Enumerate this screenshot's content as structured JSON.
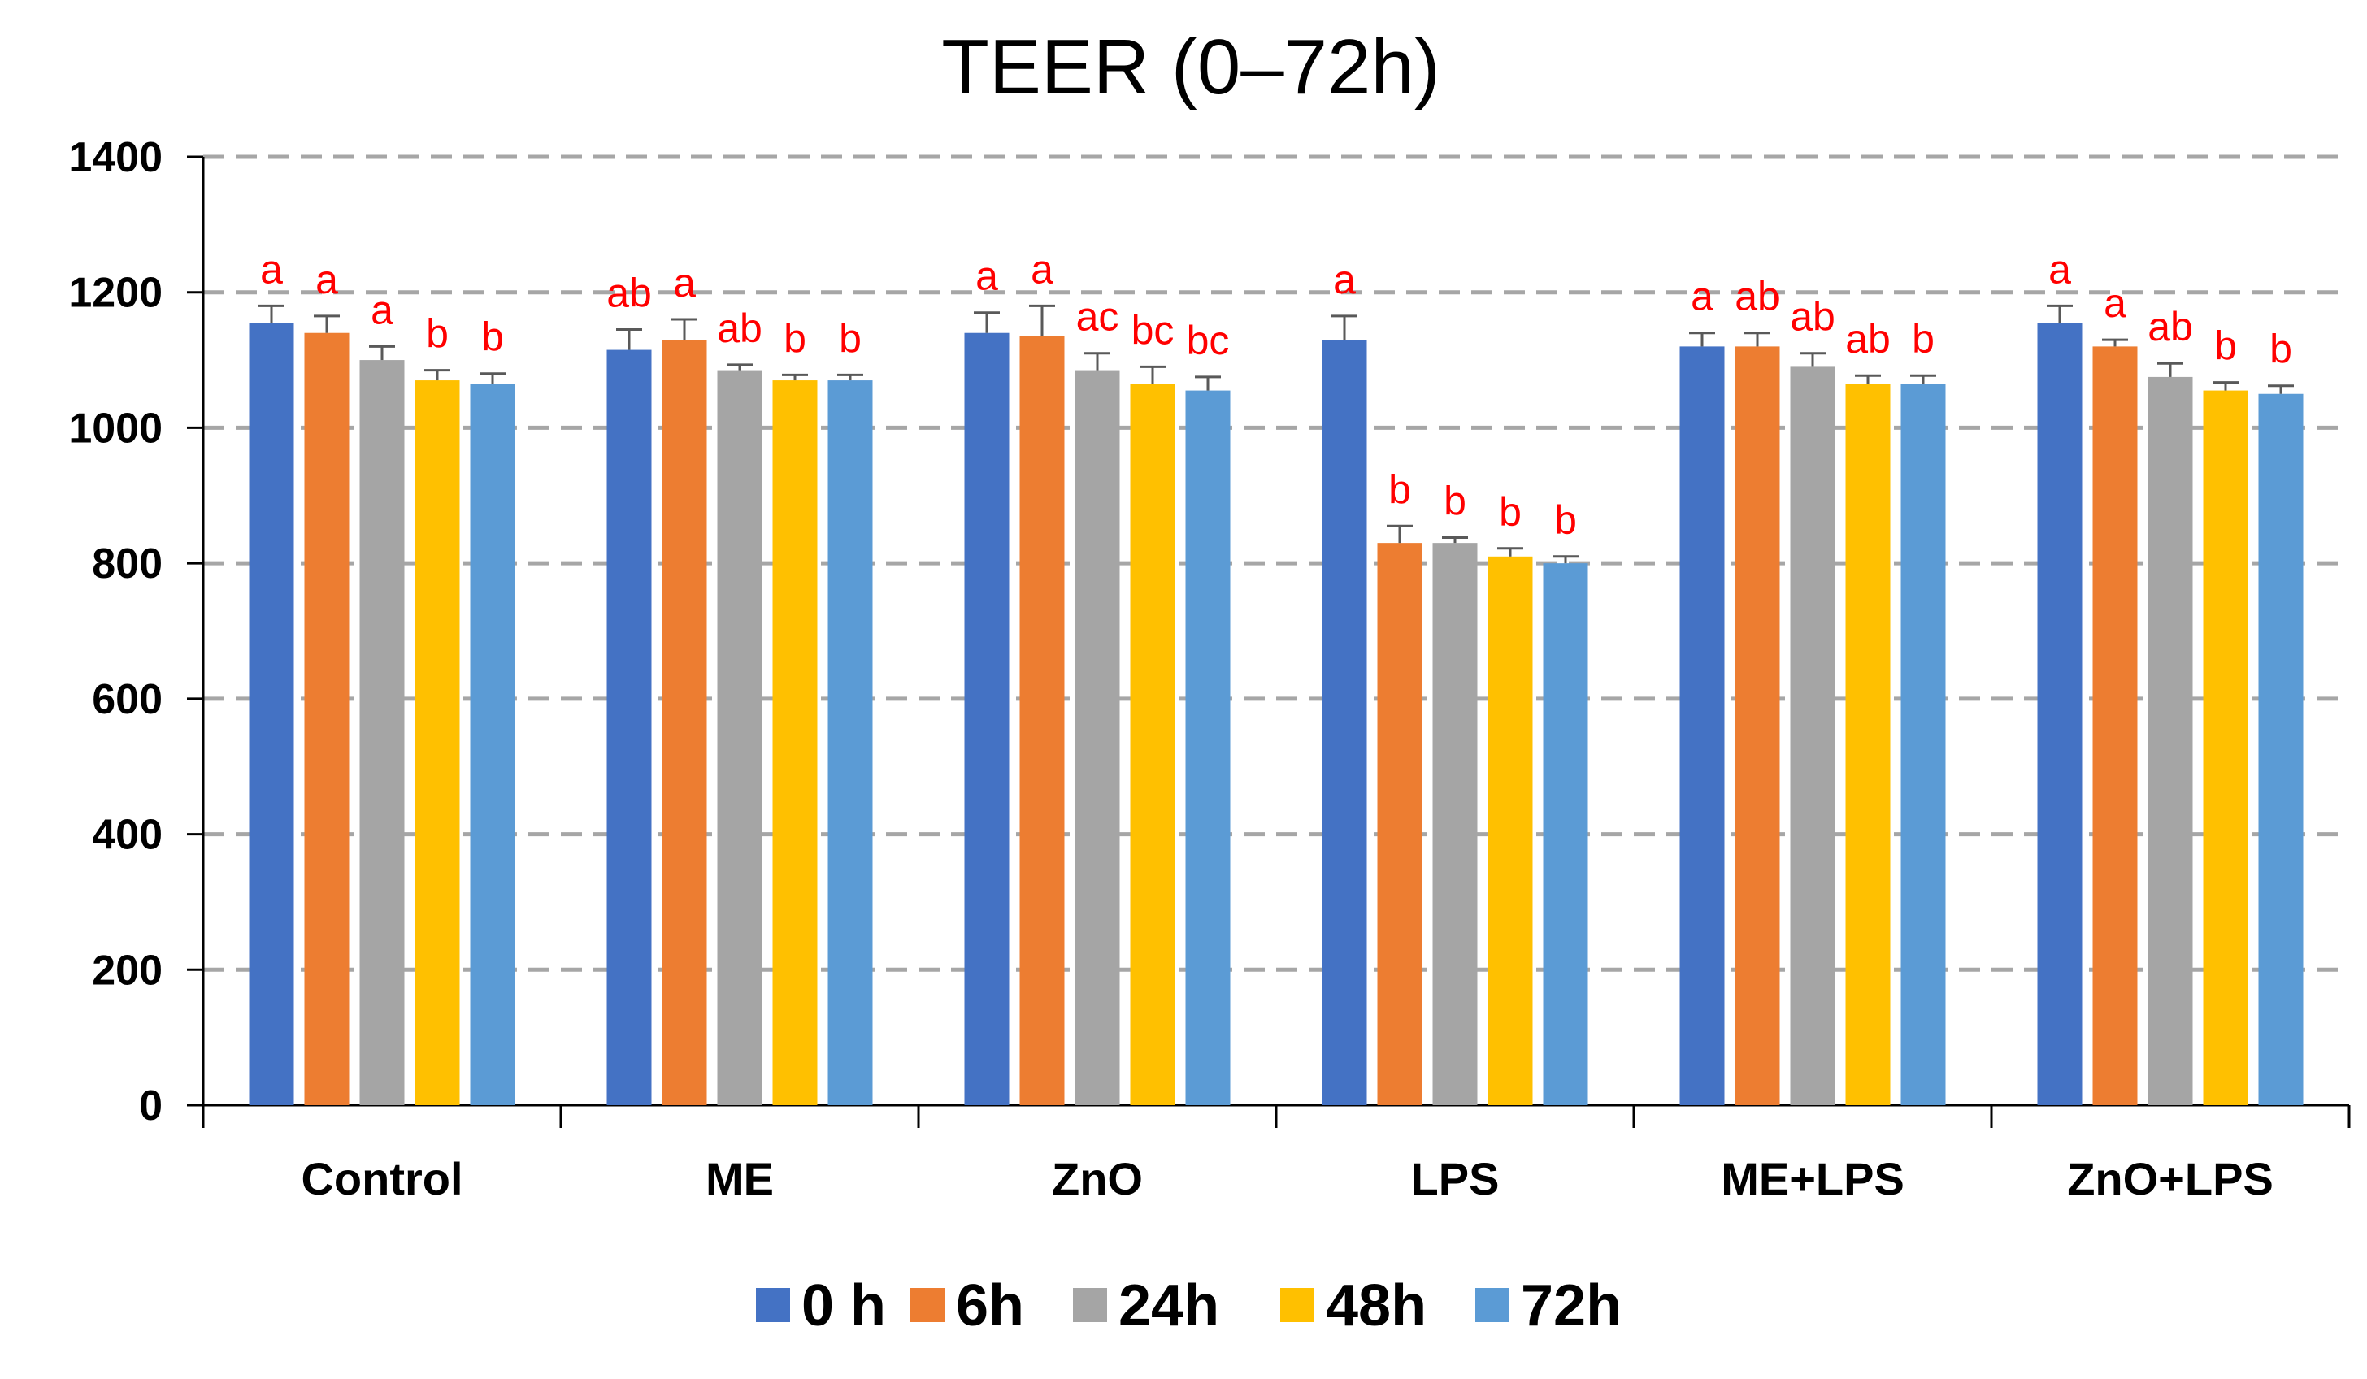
{
  "chart_data": {
    "type": "bar",
    "title": "TEER (0–72h)",
    "xlabel": "",
    "ylabel": "",
    "ylim": [
      0,
      1400
    ],
    "yticks": [
      0,
      200,
      400,
      600,
      800,
      1000,
      1200,
      1400
    ],
    "ytick_labels": [
      "0",
      "200",
      "400",
      "600",
      "800",
      "1000",
      "1200",
      "1400"
    ],
    "grid": true,
    "legend_position": "bottom",
    "categories": [
      "Control",
      "ME",
      "ZnO",
      "LPS",
      "ME+LPS",
      "ZnO+LPS"
    ],
    "series": [
      {
        "name": "0 h",
        "color": "#4472C4",
        "values": [
          1155,
          1115,
          1140,
          1130,
          1120,
          1155
        ],
        "errors": [
          25,
          30,
          30,
          35,
          20,
          25
        ],
        "significance": [
          "a",
          "ab",
          "a",
          "a",
          "a",
          "a"
        ]
      },
      {
        "name": "6h",
        "color": "#ED7D31",
        "values": [
          1140,
          1130,
          1135,
          830,
          1120,
          1120
        ],
        "errors": [
          25,
          30,
          45,
          25,
          20,
          10
        ],
        "significance": [
          "a",
          "a",
          "a",
          "b",
          "ab",
          "a"
        ]
      },
      {
        "name": "24h",
        "color": "#A5A5A5",
        "values": [
          1100,
          1085,
          1085,
          830,
          1090,
          1075
        ],
        "errors": [
          20,
          8,
          25,
          8,
          20,
          20
        ],
        "significance": [
          "a",
          "ab",
          "ac",
          "b",
          "ab",
          "ab"
        ]
      },
      {
        "name": "48h",
        "color": "#FFC000",
        "values": [
          1070,
          1070,
          1065,
          810,
          1065,
          1055
        ],
        "errors": [
          15,
          8,
          25,
          12,
          12,
          12
        ],
        "significance": [
          "b",
          "b",
          "bc",
          "b",
          "ab",
          "b"
        ]
      },
      {
        "name": "72h",
        "color": "#5B9BD5",
        "values": [
          1065,
          1070,
          1055,
          800,
          1065,
          1050
        ],
        "errors": [
          15,
          8,
          20,
          10,
          12,
          12
        ],
        "significance": [
          "b",
          "b",
          "bc",
          "b",
          "b",
          "b"
        ]
      }
    ],
    "significance_color": "#FF0000"
  }
}
